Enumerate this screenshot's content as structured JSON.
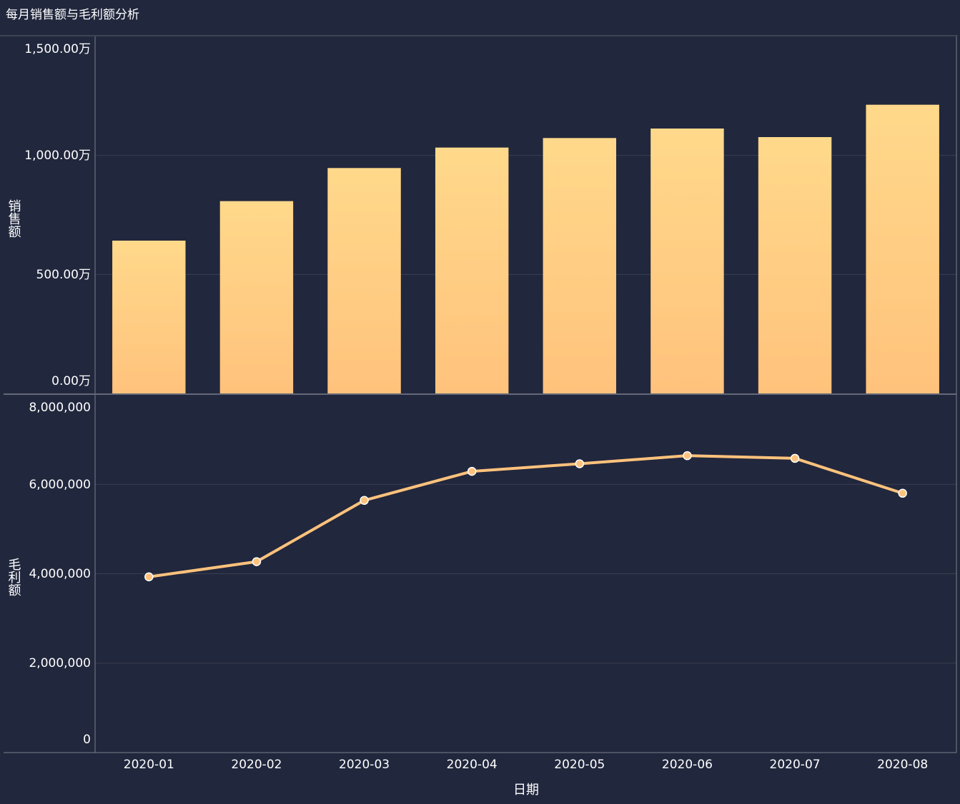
{
  "title": "每月销售额与毛利额分析",
  "colors": {
    "background": "#21273d",
    "bar_top": "#ffd98b",
    "bar_bottom": "#ffc27c",
    "line": "#ffc27c",
    "axis": "#7a7f8c",
    "grid": "#3a3f50",
    "text": "#ffffff"
  },
  "chart_data": [
    {
      "type": "bar",
      "title": "",
      "xlabel": "日期",
      "ylabel": "销售额",
      "categories": [
        "2020-01",
        "2020-02",
        "2020-03",
        "2020-04",
        "2020-05",
        "2020-06",
        "2020-07",
        "2020-08"
      ],
      "values": [
        642,
        808,
        947,
        1033,
        1073,
        1113,
        1077,
        1213
      ],
      "unit": "万",
      "ylim": [
        0,
        1500
      ],
      "yticks": [
        0,
        500,
        1000,
        1500
      ],
      "ytick_labels": [
        "0.00万",
        "500.00万",
        "1,000.00万",
        "1,500.00万"
      ],
      "grid": true
    },
    {
      "type": "line",
      "title": "",
      "xlabel": "日期",
      "ylabel": "毛利额",
      "categories": [
        "2020-01",
        "2020-02",
        "2020-03",
        "2020-04",
        "2020-05",
        "2020-06",
        "2020-07",
        "2020-08"
      ],
      "values": [
        3930000,
        4270000,
        5640000,
        6290000,
        6460000,
        6640000,
        6580000,
        5800000
      ],
      "ylim": [
        0,
        8000000
      ],
      "yticks": [
        0,
        2000000,
        4000000,
        6000000,
        8000000
      ],
      "ytick_labels": [
        "0",
        "2,000,000",
        "4,000,000",
        "6,000,000",
        "8,000,000"
      ],
      "grid": true,
      "markers": true
    }
  ]
}
